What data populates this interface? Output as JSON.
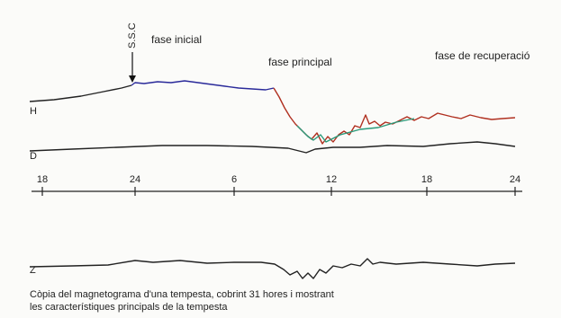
{
  "labels": {
    "ssc": "S.S.C",
    "phase_initial": "fase inicial",
    "phase_main": "fase principal",
    "phase_recovery": "fase de recuperació"
  },
  "traces": {
    "h": "H",
    "d": "D",
    "z": "Z"
  },
  "time_axis": [
    "18",
    "24",
    "6",
    "12",
    "18",
    "24"
  ],
  "caption": [
    "Còpia del magnetograma d'una tempesta, cobrint 31 hores i mostrant",
    "les característiques principals de la tempesta"
  ]
}
